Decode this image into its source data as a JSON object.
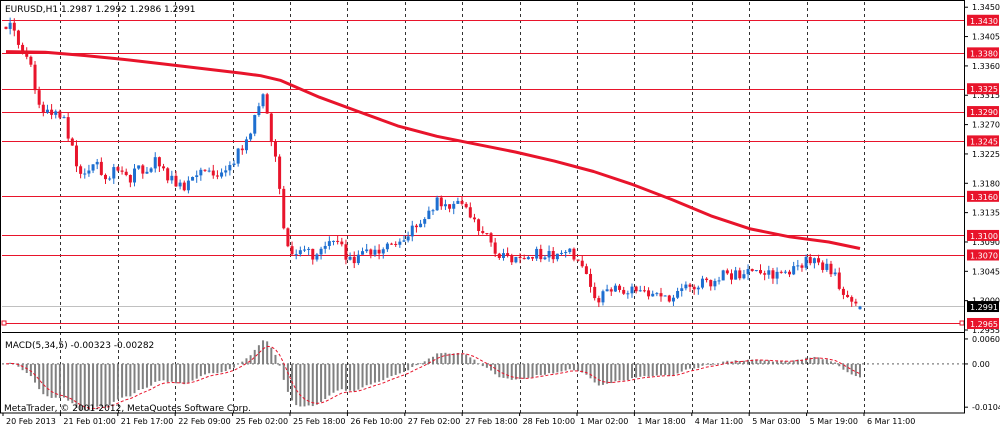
{
  "header": {
    "symbol_text": "EURUSD,H1  1.2987 1.2992 1.2986 1.2991",
    "macd_label": "MACD(5,34,5) -0.00323 -0.00282",
    "watermark": "MetaTrader, © 2001-2012, MetaQuotes Software Corp."
  },
  "colors": {
    "background": "#ffffff",
    "bull_candle": "#1e6fd0",
    "bear_candle": "#e8142b",
    "moving_average": "#e8142b",
    "level_line": "#e8142b",
    "grid": "#000000",
    "histogram": "#808080",
    "signal_line": "#e8142b"
  },
  "chart_data": [
    {
      "type": "candlestick",
      "name": "price",
      "symbol": "EURUSD",
      "timeframe": "H1",
      "ohlc_header": {
        "open": 1.2987,
        "high": 1.2992,
        "low": 1.2986,
        "close": 1.2991
      },
      "current_price": 1.2991,
      "ylim": [
        1.2955,
        1.3458
      ],
      "y_ticks": [
        1.345,
        1.3405,
        1.336,
        1.3315,
        1.327,
        1.3225,
        1.318,
        1.3135,
        1.309,
        1.3045,
        1.3,
        1.2955
      ],
      "levels": [
        1.343,
        1.338,
        1.3325,
        1.329,
        1.3245,
        1.316,
        1.31,
        1.307,
        1.2965
      ],
      "level_labels": [
        "1.3430",
        "1.3380",
        "1.3325",
        "1.3290",
        "1.3245",
        "1.3160",
        "1.3100",
        "1.3070",
        "1.2965"
      ],
      "x_labels": [
        "20 Feb 2013",
        "21 Feb 01:00",
        "21 Feb 17:00",
        "22 Feb 09:00",
        "25 Feb 02:00",
        "25 Feb 18:00",
        "26 Feb 10:00",
        "27 Feb 02:00",
        "27 Feb 18:00",
        "28 Feb 10:00",
        "1 Mar 02:00",
        "1 Mar 18:00",
        "4 Mar 11:00",
        "5 Mar 03:00",
        "5 Mar 19:00",
        "6 Mar 11:00"
      ],
      "candle_count": 207,
      "close_path": [
        [
          0,
          1.342
        ],
        [
          3,
          1.3428
        ],
        [
          8,
          1.3385
        ],
        [
          12,
          1.3372
        ],
        [
          16,
          1.33
        ],
        [
          22,
          1.329
        ],
        [
          30,
          1.3275
        ],
        [
          36,
          1.321
        ],
        [
          42,
          1.319
        ],
        [
          46,
          1.3208
        ],
        [
          52,
          1.319
        ],
        [
          56,
          1.3198
        ],
        [
          62,
          1.3185
        ],
        [
          68,
          1.32
        ],
        [
          72,
          1.3192
        ],
        [
          76,
          1.3212
        ],
        [
          80,
          1.3198
        ],
        [
          85,
          1.3188
        ],
        [
          90,
          1.3172
        ],
        [
          95,
          1.3188
        ],
        [
          100,
          1.32
        ],
        [
          106,
          1.3195
        ],
        [
          112,
          1.3208
        ],
        [
          117,
          1.322
        ],
        [
          120,
          1.323
        ],
        [
          124,
          1.325
        ],
        [
          128,
          1.329
        ],
        [
          131,
          1.332
        ],
        [
          133,
          1.329
        ],
        [
          136,
          1.324
        ],
        [
          139,
          1.32
        ],
        [
          141,
          1.313
        ],
        [
          143,
          1.308
        ],
        [
          146,
          1.3065
        ],
        [
          150,
          1.3072
        ],
        [
          154,
          1.3078
        ],
        [
          158,
          1.306
        ],
        [
          162,
          1.3075
        ],
        [
          166,
          1.3085
        ],
        [
          169,
          1.309
        ],
        [
          172,
          1.3075
        ],
        [
          175,
          1.306
        ],
        [
          178,
          1.3063
        ],
        [
          182,
          1.307
        ],
        [
          187,
          1.3072
        ],
        [
          192,
          1.3076
        ],
        [
          197,
          1.3082
        ],
        [
          202,
          1.309
        ],
        [
          207,
          1.3105
        ],
        [
          212,
          1.3118
        ],
        [
          216,
          1.314
        ],
        [
          220,
          1.315
        ],
        [
          225,
          1.3148
        ],
        [
          229,
          1.3152
        ],
        [
          233,
          1.3142
        ],
        [
          238,
          1.3128
        ],
        [
          242,
          1.311
        ],
        [
          246,
          1.31
        ],
        [
          250,
          1.3078
        ],
        [
          254,
          1.3066
        ],
        [
          258,
          1.3062
        ],
        [
          262,
          1.306
        ],
        [
          266,
          1.3065
        ],
        [
          270,
          1.3072
        ],
        [
          274,
          1.3068
        ],
        [
          278,
          1.307
        ],
        [
          282,
          1.3072
        ],
        [
          286,
          1.3075
        ],
        [
          290,
          1.307
        ],
        [
          294,
          1.305
        ],
        [
          298,
          1.302
        ],
        [
          302,
          1.3
        ],
        [
          306,
          1.3008
        ],
        [
          310,
          1.302
        ],
        [
          314,
          1.3012
        ],
        [
          318,
          1.3015
        ],
        [
          322,
          1.3012
        ],
        [
          326,
          1.3008
        ],
        [
          330,
          1.301
        ],
        [
          334,
          1.3
        ],
        [
          338,
          1.3005
        ],
        [
          342,
          1.301
        ],
        [
          346,
          1.3015
        ],
        [
          350,
          1.302
        ],
        [
          354,
          1.3028
        ],
        [
          358,
          1.303
        ],
        [
          362,
          1.3032
        ],
        [
          366,
          1.304
        ],
        [
          370,
          1.3035
        ],
        [
          374,
          1.304
        ],
        [
          378,
          1.305
        ],
        [
          382,
          1.304
        ],
        [
          386,
          1.3035
        ],
        [
          390,
          1.3038
        ],
        [
          394,
          1.3045
        ],
        [
          398,
          1.3042
        ],
        [
          402,
          1.3048
        ],
        [
          406,
          1.3055
        ],
        [
          410,
          1.306
        ],
        [
          413,
          1.3062
        ],
        [
          416,
          1.3058
        ],
        [
          419,
          1.305
        ],
        [
          422,
          1.304
        ],
        [
          425,
          1.3028
        ],
        [
          428,
          1.3015
        ],
        [
          431,
          1.3002
        ],
        [
          434,
          1.2992
        ],
        [
          436,
          1.2991
        ]
      ],
      "moving_average": [
        [
          0,
          1.3382
        ],
        [
          20,
          1.3381
        ],
        [
          40,
          1.3376
        ],
        [
          60,
          1.337
        ],
        [
          80,
          1.3363
        ],
        [
          100,
          1.3356
        ],
        [
          120,
          1.3349
        ],
        [
          130,
          1.3345
        ],
        [
          140,
          1.3338
        ],
        [
          160,
          1.3312
        ],
        [
          180,
          1.329
        ],
        [
          200,
          1.3268
        ],
        [
          220,
          1.3252
        ],
        [
          240,
          1.324
        ],
        [
          260,
          1.3228
        ],
        [
          280,
          1.3214
        ],
        [
          300,
          1.3198
        ],
        [
          320,
          1.3178
        ],
        [
          340,
          1.3155
        ],
        [
          360,
          1.313
        ],
        [
          380,
          1.311
        ],
        [
          400,
          1.3098
        ],
        [
          420,
          1.309
        ],
        [
          436,
          1.308
        ]
      ]
    },
    {
      "type": "histogram",
      "name": "MACD(5,34,5)",
      "values_text": "-0.00323 -0.00282",
      "main": -0.00323,
      "signal": -0.00282,
      "ylim": [
        -0.0118,
        0.0072
      ],
      "y_ticks": [
        0.00601,
        0.0,
        -0.0104
      ],
      "y_tick_labels": [
        "0.00601",
        "0.00",
        "-0.0104"
      ]
    }
  ]
}
